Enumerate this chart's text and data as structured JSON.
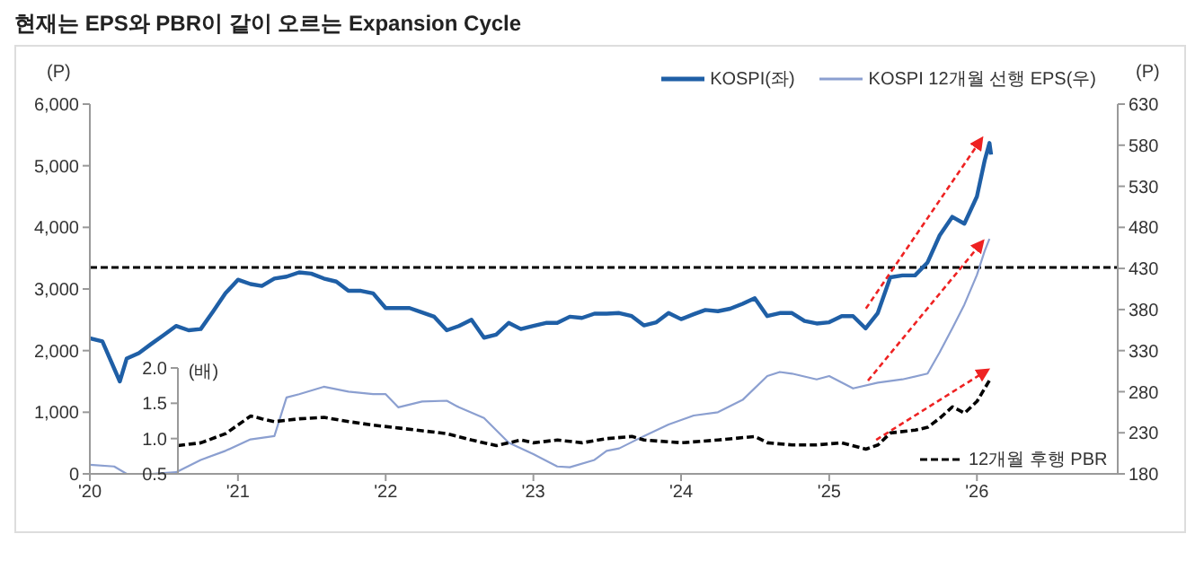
{
  "chart_data": {
    "type": "line",
    "title": "현재는 EPS와 PBR이 같이 오르는 Expansion Cycle",
    "ylabel": "(P)",
    "y2label": "(P)",
    "y3label": "(배)",
    "xlim": [
      "2020-01-01",
      "2026-12-15"
    ],
    "xticks": [
      {
        "value": "2020-01-01",
        "label": "'20"
      },
      {
        "value": "2021-01-01",
        "label": "'21"
      },
      {
        "value": "2022-01-01",
        "label": "'22"
      },
      {
        "value": "2023-01-01",
        "label": "'23"
      },
      {
        "value": "2024-01-01",
        "label": "'24"
      },
      {
        "value": "2025-01-01",
        "label": "'25"
      },
      {
        "value": "2026-01-01",
        "label": "'26"
      }
    ],
    "ylim": [
      0,
      6000
    ],
    "yticks": [
      {
        "value": 0,
        "label": "0"
      },
      {
        "value": 1000,
        "label": "1,000"
      },
      {
        "value": 2000,
        "label": "2,000"
      },
      {
        "value": 3000,
        "label": "3,000"
      },
      {
        "value": 4000,
        "label": "4,000"
      },
      {
        "value": 5000,
        "label": "5,000"
      },
      {
        "value": 6000,
        "label": "6,000"
      }
    ],
    "y2lim": [
      180,
      630
    ],
    "y2ticks": [
      180,
      230,
      280,
      330,
      380,
      430,
      480,
      530,
      580,
      630
    ],
    "y3lim": [
      0.5,
      2.0
    ],
    "y3ticks": [
      {
        "value": 0.5,
        "label": "0.5"
      },
      {
        "value": 1.0,
        "label": "1.0"
      },
      {
        "value": 1.5,
        "label": "1.5"
      },
      {
        "value": 2.0,
        "label": "2.0"
      }
    ],
    "grid": false,
    "legend": "top right",
    "marker": "none",
    "ref_lines": [
      {
        "axis": "y",
        "value": 3350,
        "color": "#000000",
        "line_style": "dashed"
      }
    ],
    "series": [
      {
        "name": "KOSPI(좌)",
        "color": "#1f5fa6",
        "line_style": "solid",
        "x": [
          "2020-01",
          "2020-02",
          "2020-03-15",
          "2020-04",
          "2020-05",
          "2020-06",
          "2020-07",
          "2020-08",
          "2020-09",
          "2020-10",
          "2020-11",
          "2020-12",
          "2021-01",
          "2021-02",
          "2021-03",
          "2021-04",
          "2021-05",
          "2021-06",
          "2021-07",
          "2021-08",
          "2021-09",
          "2021-10",
          "2021-11",
          "2021-12",
          "2022-01",
          "2022-02",
          "2022-03",
          "2022-04",
          "2022-05",
          "2022-06",
          "2022-07",
          "2022-08",
          "2022-09",
          "2022-10",
          "2022-11",
          "2022-12",
          "2023-01",
          "2023-02",
          "2023-03",
          "2023-04",
          "2023-05",
          "2023-06",
          "2023-07",
          "2023-08",
          "2023-09",
          "2023-10",
          "2023-11",
          "2023-12",
          "2024-01",
          "2024-02",
          "2024-03",
          "2024-04",
          "2024-05",
          "2024-06",
          "2024-07",
          "2024-08",
          "2024-09",
          "2024-10",
          "2024-11",
          "2024-12",
          "2025-01",
          "2025-02",
          "2025-03",
          "2025-04",
          "2025-05",
          "2025-06",
          "2025-07",
          "2025-08",
          "2025-09",
          "2025-10",
          "2025-11",
          "2025-12",
          "2026-01",
          "2026-01-20",
          "2026-02-01",
          "2026-02-05"
        ],
        "values": [
          2200,
          2150,
          1500,
          1870,
          1960,
          2110,
          2250,
          2400,
          2330,
          2350,
          2640,
          2930,
          3150,
          3080,
          3050,
          3170,
          3200,
          3270,
          3250,
          3170,
          3120,
          2970,
          2970,
          2930,
          2690,
          2690,
          2690,
          2620,
          2550,
          2330,
          2400,
          2500,
          2210,
          2260,
          2450,
          2350,
          2400,
          2450,
          2450,
          2550,
          2530,
          2600,
          2600,
          2610,
          2560,
          2410,
          2460,
          2610,
          2510,
          2590,
          2660,
          2640,
          2680,
          2760,
          2850,
          2560,
          2610,
          2610,
          2480,
          2440,
          2460,
          2560,
          2560,
          2360,
          2610,
          3190,
          3220,
          3220,
          3430,
          3870,
          4170,
          4060,
          4500,
          5080,
          5370,
          5180
        ]
      },
      {
        "name": "KOSPI 12개월 선행 EPS(우)",
        "color": "#8b9fd0",
        "line_style": "solid",
        "axis": "y2",
        "x": [
          "2020-01",
          "2020-03",
          "2020-04",
          "2020-06",
          "2020-08",
          "2020-10",
          "2020-12",
          "2021-02",
          "2021-04",
          "2021-05",
          "2021-06",
          "2021-08",
          "2021-10",
          "2021-12",
          "2022-01",
          "2022-02",
          "2022-04",
          "2022-06",
          "2022-07",
          "2022-09",
          "2022-11",
          "2023-01",
          "2023-03",
          "2023-04",
          "2023-06",
          "2023-07",
          "2023-08",
          "2023-10",
          "2023-12",
          "2024-02",
          "2024-04",
          "2024-06",
          "2024-08",
          "2024-09",
          "2024-10",
          "2024-12",
          "2025-01",
          "2025-03",
          "2025-05",
          "2025-07",
          "2025-09",
          "2025-10",
          "2025-11",
          "2025-12",
          "2026-01",
          "2026-01-20",
          "2026-02-01"
        ],
        "values": [
          191,
          189,
          180,
          180,
          182,
          197,
          208,
          222,
          226,
          273,
          277,
          286,
          280,
          277,
          277,
          261,
          268,
          269,
          261,
          248,
          218,
          204,
          189,
          188,
          197,
          208,
          211,
          226,
          240,
          251,
          255,
          270,
          299,
          304,
          302,
          295,
          299,
          284,
          291,
          295,
          302,
          328,
          357,
          386,
          422,
          451,
          466
        ]
      },
      {
        "name": "12개월 후행 PBR",
        "color": "#000000",
        "line_style": "dashed",
        "axis": "y3",
        "x": [
          "2020-08-05",
          "2020-10",
          "2020-12",
          "2021-02",
          "2021-03",
          "2021-04",
          "2021-06",
          "2021-08",
          "2021-10",
          "2021-12",
          "2022-02",
          "2022-04",
          "2022-06",
          "2022-08",
          "2022-10",
          "2022-12",
          "2023-01",
          "2023-03",
          "2023-05",
          "2023-07",
          "2023-09",
          "2023-10",
          "2024-01",
          "2024-04",
          "2024-07",
          "2024-08",
          "2024-10",
          "2024-12",
          "2025-02",
          "2025-04",
          "2025-05",
          "2025-06",
          "2025-08",
          "2025-09",
          "2025-10",
          "2025-11",
          "2025-12",
          "2026-01",
          "2026-02-01"
        ],
        "values": [
          0.9,
          0.94,
          1.07,
          1.32,
          1.28,
          1.24,
          1.28,
          1.3,
          1.24,
          1.19,
          1.15,
          1.11,
          1.07,
          0.98,
          0.9,
          0.98,
          0.94,
          0.98,
          0.94,
          1.0,
          1.03,
          0.98,
          0.94,
          0.98,
          1.03,
          0.94,
          0.91,
          0.91,
          0.94,
          0.85,
          0.91,
          1.08,
          1.12,
          1.16,
          1.29,
          1.45,
          1.36,
          1.53,
          1.83
        ]
      }
    ]
  }
}
